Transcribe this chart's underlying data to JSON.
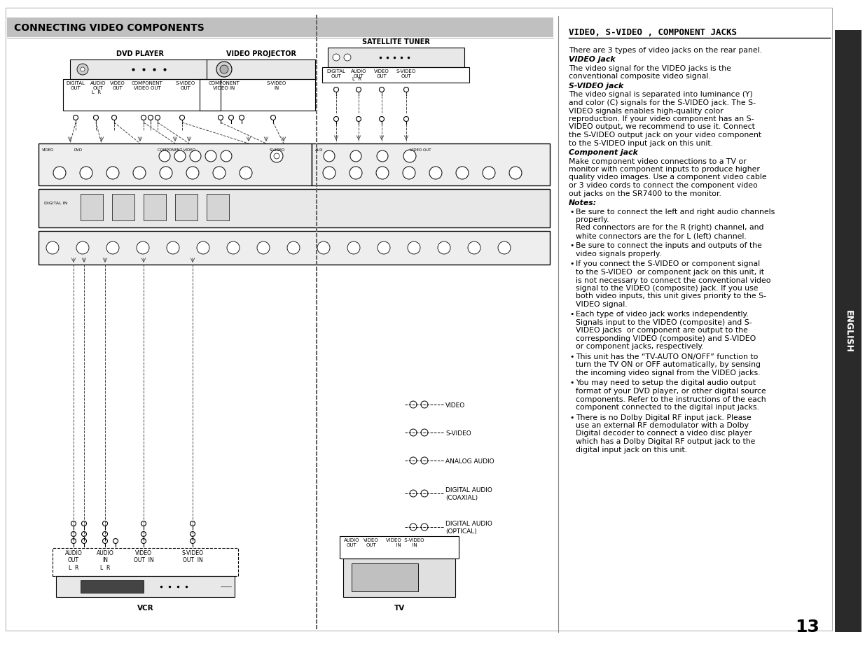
{
  "bg_color": "#ffffff",
  "page_bg": "#ffffff",
  "title_bar_color": "#c0c0c0",
  "title_text": "CONNECTING VIDEO COMPONENTS",
  "title_fontsize": 11,
  "right_section_title": "VIDEO, S-VIDEO , COMPONENT JACKS",
  "right_bg": "#f0f0f0",
  "sidebar_text": "ENGLISH",
  "sidebar_bg": "#2a2a2a",
  "page_number": "13",
  "right_text_blocks": [
    {
      "style": "normal",
      "text": "There are 3 types of video jacks on the rear panel."
    },
    {
      "style": "bold_italic",
      "text": "VIDEO jack"
    },
    {
      "style": "normal",
      "text": "The video signal for the VIDEO jacks is the\nconventional composite video signal."
    },
    {
      "style": "bold_italic",
      "text": "S-VIDEO jack"
    },
    {
      "style": "normal",
      "text": "The video signal is separated into luminance (Y)\nand color (C) signals for the S-VIDEO jack. The S-\nVIDEO signals enables high-quality color\nreproduction. If your video component has an S-\nVIDEO output, we recommend to use it. Connect\nthe S-VIDEO output jack on your video component\nto the S-VIDEO input jack on this unit."
    },
    {
      "style": "bold_italic",
      "text": "Component jack"
    },
    {
      "style": "normal",
      "text": "Make component video connections to a TV or\nmonitor with component inputs to produce higher\nquality video images. Use a component video cable\nor 3 video cords to connect the component video\nout jacks on the SR7400 to the monitor."
    },
    {
      "style": "bold_italic",
      "text": "Notes:"
    },
    {
      "style": "bullet",
      "text": "Be sure to connect the left and right audio channels\nproperly.\nRed connectors are for the R (right) channel, and\nwhite connectors are the for L (left) channel."
    },
    {
      "style": "bullet",
      "text": "Be sure to connect the inputs and outputs of the\nvideo signals properly."
    },
    {
      "style": "bullet",
      "text": "If you connect the S-VIDEO or component signal\nto the S-VIDEO  or component jack on this unit, it\nis not necessary to connect the conventional video\nsignal to the VIDEO (composite) jack. If you use\nboth video inputs, this unit gives priority to the S-\nVIDEO signal."
    },
    {
      "style": "bullet",
      "text": "Each type of video jack works independently.\nSignals input to the VIDEO (composite) and S-\nVIDEO jacks  or component are output to the\ncorresponding VIDEO (composite) and S-VIDEO\nor component jacks, respectively."
    },
    {
      "style": "bullet",
      "text": "This unit has the “TV-AUTO ON/OFF” function to\nturn the TV ON or OFF automatically, by sensing\nthe incoming video signal from the VIDEO jacks."
    },
    {
      "style": "bullet",
      "text": "You may need to setup the digital audio output\nformat of your DVD player, or other digital source\ncomponents. Refer to the instructions of the each\ncomponent connected to the digital input jacks."
    },
    {
      "style": "bullet",
      "text": "There is no Dolby Digital RF input jack. Please\nuse an external RF demodulator with a Dolby\nDigital decoder to connect a video disc player\nwhich has a Dolby Digital RF output jack to the\ndigital input jack on this unit."
    }
  ],
  "diagram_labels": {
    "dvd_player": "DVD PLAYER",
    "video_projector": "VIDEO PROJECTOR",
    "satellite_tuner": "SATELLITE TUNER",
    "vcr": "VCR",
    "tv": "TV",
    "right_side_labels": [
      "VIDEO",
      "S-VIDEO",
      "ANALOG AUDIO",
      "DIGITAL AUDIO\n(COAXIAL)",
      "DIGITAL AUDIO\n(OPTICAL)"
    ]
  },
  "separator_color": "#888888",
  "border_color": "#333333",
  "dashed_line_color": "#444444",
  "dot_separator_color": "#666666"
}
